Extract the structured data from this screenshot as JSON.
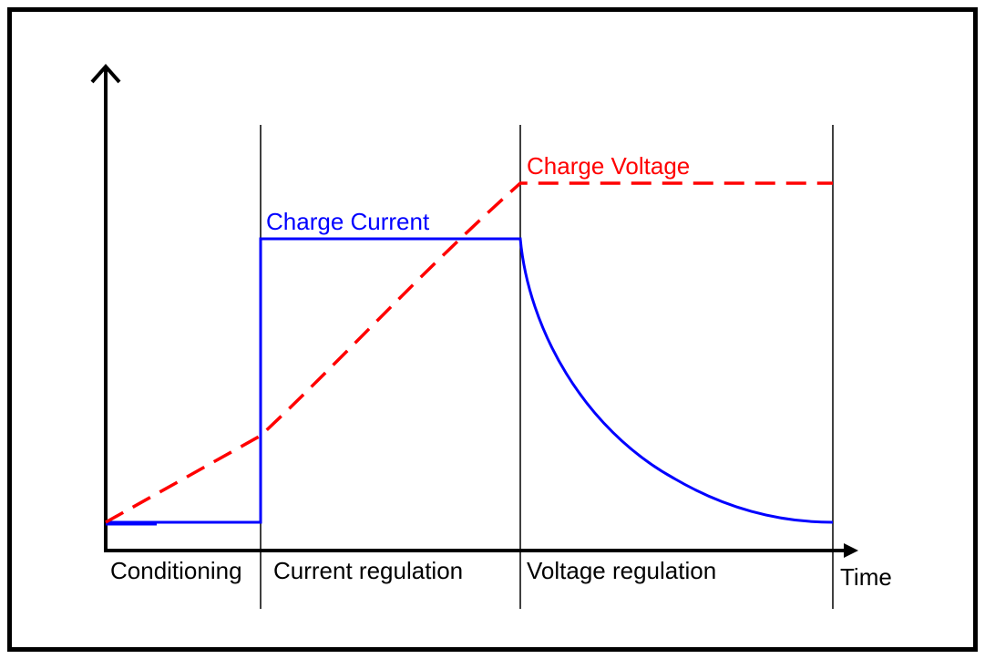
{
  "labels": {
    "charge_voltage": "Charge Voltage",
    "charge_current": "Charge Current",
    "time": "Time"
  },
  "phases": [
    "Conditioning",
    "Current regulation",
    "Voltage regulation"
  ],
  "colors": {
    "voltage": "#ff0000",
    "current": "#0000ff",
    "axis": "#000000",
    "border": "#000000"
  },
  "curves": {
    "voltage_style": "dashed",
    "current_style": "solid"
  }
}
